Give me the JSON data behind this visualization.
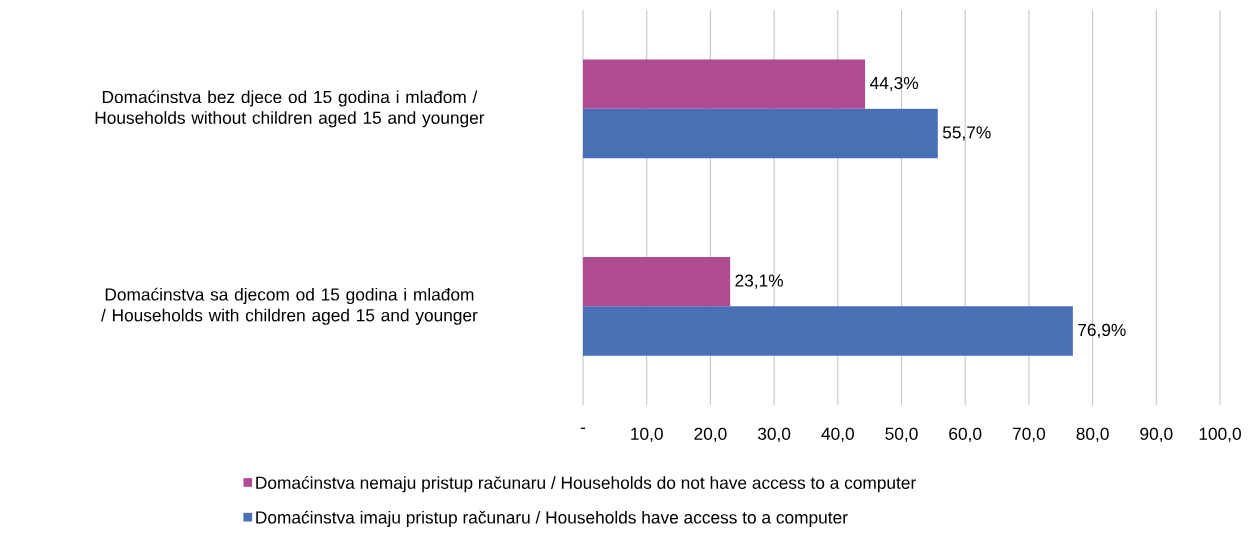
{
  "chart_data": {
    "type": "bar",
    "orientation": "horizontal",
    "categories": [
      "Domaćinstva bez djece od 15 godina i mlađom / Households without children aged 15 and younger",
      "Domaćinstva sa djecom od 15 godina i mlađom / Households with children aged 15 and younger"
    ],
    "series": [
      {
        "name": "Domaćinstva nemaju pristup računaru / Households do not have access to a computer",
        "color": "#ae4b91",
        "values": [
          44.3,
          23.1
        ],
        "value_labels": [
          "44,3%",
          "23,1%"
        ]
      },
      {
        "name": "Domaćinstva imaju pristup računaru / Households have access to a computer",
        "color": "#4a6fb5",
        "values": [
          55.7,
          76.9
        ],
        "value_labels": [
          "55,7%",
          "76,9%"
        ]
      }
    ],
    "xlim": [
      0,
      100
    ],
    "xticks": [
      {
        "value": 0,
        "label": "-"
      },
      {
        "value": 10,
        "label": "10,0"
      },
      {
        "value": 20,
        "label": "20,0"
      },
      {
        "value": 30,
        "label": "30,0"
      },
      {
        "value": 40,
        "label": "40,0"
      },
      {
        "value": 50,
        "label": "50,0"
      },
      {
        "value": 60,
        "label": "60,0"
      },
      {
        "value": 70,
        "label": "70,0"
      },
      {
        "value": 80,
        "label": "80,0"
      },
      {
        "value": 90,
        "label": "90,0"
      },
      {
        "value": 100,
        "label": "100,0"
      }
    ],
    "grid": "x",
    "legend": "bottom"
  }
}
